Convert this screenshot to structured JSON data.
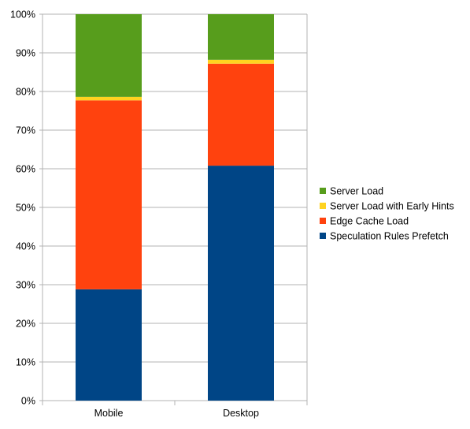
{
  "chart_data": {
    "type": "bar",
    "stacked": true,
    "percent_stacked": true,
    "title": "",
    "xlabel": "",
    "ylabel": "",
    "categories": [
      "Mobile",
      "Desktop"
    ],
    "ylim": [
      0,
      100
    ],
    "yticks": [
      "0%",
      "10%",
      "20%",
      "30%",
      "40%",
      "50%",
      "60%",
      "70%",
      "80%",
      "90%",
      "100%"
    ],
    "grid": "horizontal",
    "legend_position": "right",
    "series": [
      {
        "name": "Speculation Rules Prefetch",
        "color": "#004586",
        "values": [
          28.8,
          60.8
        ]
      },
      {
        "name": "Edge Cache Load",
        "color": "#ff420e",
        "values": [
          48.9,
          26.4
        ]
      },
      {
        "name": "Server Load with Early Hints",
        "color": "#ffd320",
        "values": [
          0.9,
          1.0
        ]
      },
      {
        "name": "Server Load",
        "color": "#579d1c",
        "values": [
          21.4,
          11.8
        ]
      }
    ],
    "legend_order": [
      "Server Load",
      "Server Load with Early Hints",
      "Edge Cache Load",
      "Speculation Rules Prefetch"
    ]
  }
}
